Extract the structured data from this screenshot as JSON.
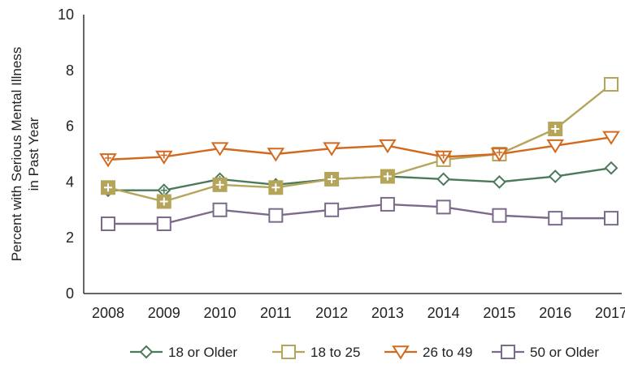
{
  "chart_data": {
    "type": "line",
    "ylabel": "Percent with Serious Mental Illness in Past Year",
    "ylabel_lines": [
      "Percent with Serious Mental Illness",
      "in Past Year"
    ],
    "x": [
      "2008",
      "2009",
      "2010",
      "2011",
      "2012",
      "2013",
      "2014",
      "2015",
      "2016",
      "2017"
    ],
    "ylim": [
      0,
      10
    ],
    "yticks": [
      "0",
      "2",
      "4",
      "6",
      "8",
      "10"
    ],
    "legend_position": "bottom",
    "series": [
      {
        "name": "18 or Older",
        "values": [
          3.7,
          3.7,
          4.1,
          3.9,
          4.1,
          4.2,
          4.1,
          4.0,
          4.2,
          4.5
        ],
        "color": "#4a7a5a",
        "marker": "diamond",
        "cross": [
          true,
          true,
          true,
          true,
          false,
          false,
          false,
          false,
          false,
          false
        ]
      },
      {
        "name": "18 to 25",
        "values": [
          3.8,
          3.3,
          3.9,
          3.8,
          4.1,
          4.2,
          4.8,
          5.0,
          5.9,
          7.5
        ],
        "color": "#b5a55a",
        "marker": "square",
        "filled": [
          true,
          true,
          true,
          true,
          true,
          true,
          false,
          false,
          true,
          false
        ]
      },
      {
        "name": "26 to 49",
        "values": [
          4.8,
          4.9,
          5.2,
          5.0,
          5.2,
          5.3,
          4.9,
          5.0,
          5.3,
          5.6
        ],
        "color": "#d2691e",
        "marker": "triangle-down",
        "cross": [
          true,
          true,
          false,
          false,
          false,
          false,
          true,
          true,
          false,
          false
        ]
      },
      {
        "name": "50 or Older",
        "values": [
          2.5,
          2.5,
          3.0,
          2.8,
          3.0,
          3.2,
          3.1,
          2.8,
          2.7,
          2.7
        ],
        "color": "#7b6a8a",
        "marker": "square-open"
      }
    ]
  }
}
